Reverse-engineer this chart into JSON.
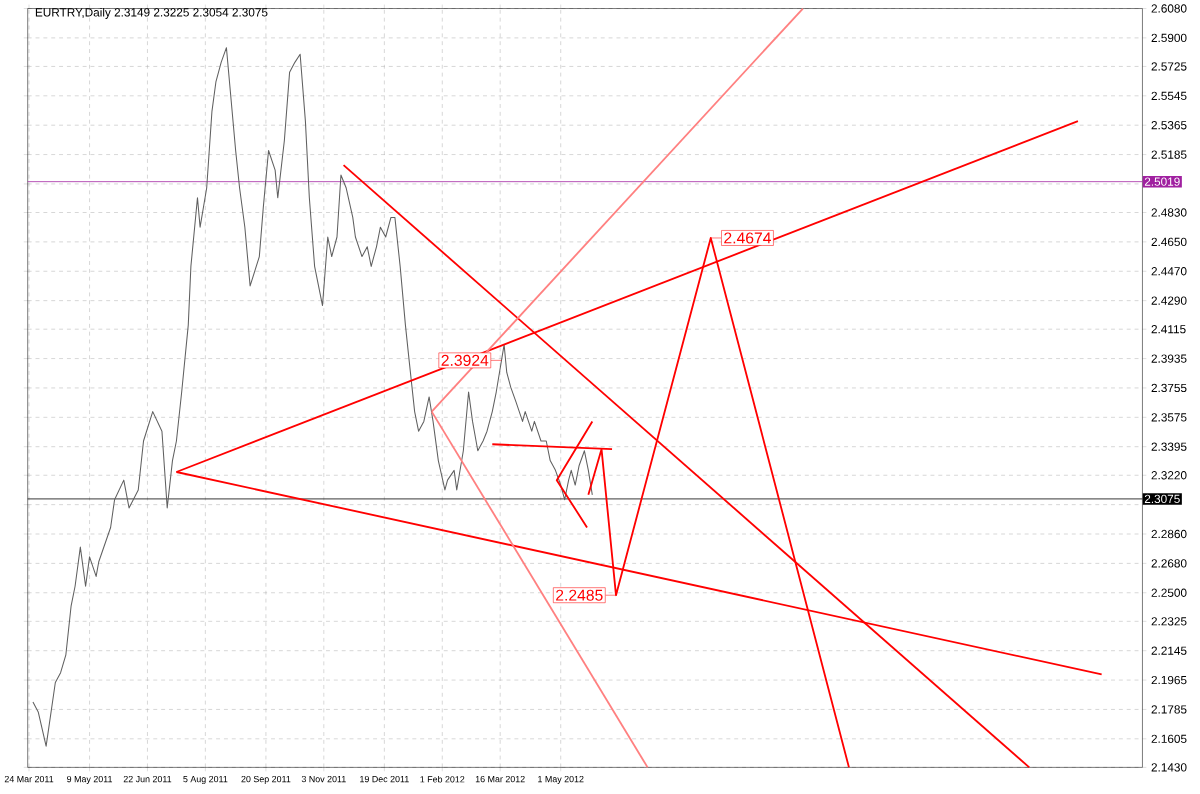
{
  "chart_data": {
    "type": "line",
    "title": "EURTRY,Daily  2.3149 2.3225 2.3054 2.3075",
    "xlim": [
      "2011-03-23",
      "2013-07-17"
    ],
    "ylim": [
      2.143,
      2.608
    ],
    "xticks": [
      {
        "value": "2011-03-24",
        "label": "24 Mar 2011"
      },
      {
        "value": "2011-05-09",
        "label": "9 May 2011"
      },
      {
        "value": "2011-06-22",
        "label": "22 Jun 2011"
      },
      {
        "value": "2011-08-05",
        "label": "5 Aug 2011"
      },
      {
        "value": "2011-09-20",
        "label": "20 Sep 2011"
      },
      {
        "value": "2011-11-03",
        "label": "3 Nov 2011"
      },
      {
        "value": "2011-12-19",
        "label": "19 Dec 2011"
      },
      {
        "value": "2012-02-01",
        "label": "1 Feb 2012"
      },
      {
        "value": "2012-03-16",
        "label": "16 Mar 2012"
      },
      {
        "value": "2012-05-01",
        "label": "1 May 2012"
      }
    ],
    "yticks": [
      {
        "value": 2.143,
        "label": "2.1430"
      },
      {
        "value": 2.1605,
        "label": "2.1605"
      },
      {
        "value": 2.1785,
        "label": "2.1785"
      },
      {
        "value": 2.1965,
        "label": "2.1965"
      },
      {
        "value": 2.2145,
        "label": "2.2145"
      },
      {
        "value": 2.2325,
        "label": "2.2325"
      },
      {
        "value": 2.25,
        "label": "2.2500"
      },
      {
        "value": 2.268,
        "label": "2.2680"
      },
      {
        "value": 2.286,
        "label": "2.2860"
      },
      {
        "value": 2.304,
        "label": null
      },
      {
        "value": 2.322,
        "label": "2.3220"
      },
      {
        "value": 2.3395,
        "label": "2.3395"
      },
      {
        "value": 2.3575,
        "label": "2.3575"
      },
      {
        "value": 2.3755,
        "label": "2.3755"
      },
      {
        "value": 2.3935,
        "label": "2.3935"
      },
      {
        "value": 2.4115,
        "label": "2.4115"
      },
      {
        "value": 2.429,
        "label": "2.4290"
      },
      {
        "value": 2.447,
        "label": "2.4470"
      },
      {
        "value": 2.465,
        "label": "2.4650"
      },
      {
        "value": 2.483,
        "label": "2.4830"
      },
      {
        "value": 2.5005,
        "label": null
      },
      {
        "value": 2.5185,
        "label": "2.5185"
      },
      {
        "value": 2.5365,
        "label": "2.5365"
      },
      {
        "value": 2.5545,
        "label": "2.5545"
      },
      {
        "value": 2.5725,
        "label": "2.5725"
      },
      {
        "value": 2.59,
        "label": "2.5900"
      },
      {
        "value": 2.608,
        "label": "2.6080"
      }
    ],
    "grid": true,
    "series": [
      {
        "color": "#606060",
        "x": [
          "2011-03-27",
          "2011-03-31",
          "2011-04-06",
          "2011-04-13",
          "2011-04-17",
          "2011-04-21",
          "2011-04-25",
          "2011-04-28",
          "2011-05-02",
          "2011-05-06",
          "2011-05-09",
          "2011-05-14",
          "2011-05-16",
          "2011-05-25",
          "2011-05-28",
          "2011-06-04",
          "2011-06-08",
          "2011-06-15",
          "2011-06-19",
          "2011-06-26",
          "2011-07-03",
          "2011-07-07",
          "2011-07-11",
          "2011-07-14",
          "2011-07-18",
          "2011-07-23",
          "2011-07-25",
          "2011-07-30",
          "2011-08-01",
          "2011-08-06",
          "2011-08-10",
          "2011-08-13",
          "2011-08-17",
          "2011-08-21",
          "2011-08-24",
          "2011-08-28",
          "2011-08-31",
          "2011-09-04",
          "2011-09-08",
          "2011-09-15",
          "2011-09-18",
          "2011-09-22",
          "2011-09-27",
          "2011-09-29",
          "2011-10-04",
          "2011-10-08",
          "2011-10-12",
          "2011-10-16",
          "2011-10-20",
          "2011-10-23",
          "2011-10-27",
          "2011-11-02",
          "2011-11-06",
          "2011-11-09",
          "2011-11-13",
          "2011-11-16",
          "2011-11-20",
          "2011-11-25",
          "2011-11-27",
          "2011-12-02",
          "2011-12-06",
          "2011-12-09",
          "2011-12-13",
          "2011-12-16",
          "2011-12-20",
          "2011-12-24",
          "2011-12-27",
          "2011-12-31",
          "2012-01-04",
          "2012-01-07",
          "2012-01-11",
          "2012-01-14",
          "2012-01-18",
          "2012-01-22",
          "2012-01-25",
          "2012-01-29",
          "2012-02-03",
          "2012-02-05",
          "2012-02-10",
          "2012-02-12",
          "2012-02-17",
          "2012-02-21",
          "2012-02-24",
          "2012-02-28",
          "2012-03-03",
          "2012-03-06",
          "2012-03-10",
          "2012-03-13",
          "2012-03-19",
          "2012-03-21",
          "2012-03-24",
          "2012-03-28",
          "2012-04-02",
          "2012-04-04",
          "2012-04-09",
          "2012-04-11",
          "2012-04-16",
          "2012-04-20",
          "2012-04-23",
          "2012-04-27",
          "2012-05-01",
          "2012-05-04",
          "2012-05-07",
          "2012-05-09",
          "2012-05-12",
          "2012-05-15",
          "2012-05-19",
          "2012-05-22",
          "2012-05-25"
        ],
        "values": [
          2.183,
          2.177,
          2.156,
          2.195,
          2.201,
          2.212,
          2.242,
          2.254,
          2.278,
          2.254,
          2.272,
          2.26,
          2.269,
          2.29,
          2.307,
          2.319,
          2.302,
          2.313,
          2.343,
          2.361,
          2.349,
          2.302,
          2.331,
          2.343,
          2.373,
          2.414,
          2.45,
          2.492,
          2.474,
          2.498,
          2.545,
          2.563,
          2.575,
          2.584,
          2.557,
          2.521,
          2.498,
          2.474,
          2.438,
          2.456,
          2.486,
          2.521,
          2.509,
          2.492,
          2.527,
          2.569,
          2.575,
          2.58,
          2.539,
          2.492,
          2.45,
          2.426,
          2.468,
          2.456,
          2.468,
          2.506,
          2.498,
          2.48,
          2.468,
          2.456,
          2.462,
          2.45,
          2.462,
          2.474,
          2.468,
          2.48,
          2.48,
          2.45,
          2.414,
          2.391,
          2.361,
          2.349,
          2.355,
          2.37,
          2.355,
          2.331,
          2.313,
          2.319,
          2.325,
          2.313,
          2.337,
          2.373,
          2.355,
          2.337,
          2.343,
          2.349,
          2.361,
          2.373,
          2.402,
          2.385,
          2.376,
          2.367,
          2.355,
          2.361,
          2.349,
          2.355,
          2.343,
          2.343,
          2.331,
          2.325,
          2.316,
          2.307,
          2.319,
          2.325,
          2.316,
          2.328,
          2.337,
          2.325,
          2.31
        ]
      },
      {
        "color": "#ff0000",
        "x": [
          "2011-07-14",
          "2013-05-29"
        ],
        "values": [
          2.324,
          2.539
        ]
      },
      {
        "color": "#ff0000",
        "x": [
          "2011-07-14",
          "2013-06-16"
        ],
        "values": [
          2.324,
          2.2
        ]
      },
      {
        "color": "#ff0000",
        "x": [
          "2011-11-18",
          "2013-04-22"
        ],
        "values": [
          2.512,
          2.143
        ]
      },
      {
        "color": "#ff8080",
        "x": [
          "2012-01-24",
          "2012-11-01"
        ],
        "values": [
          2.361,
          2.608
        ]
      },
      {
        "color": "#ff8080",
        "x": [
          "2012-01-24",
          "2012-07-06"
        ],
        "values": [
          2.361,
          2.143
        ]
      },
      {
        "color": "#ff0000",
        "x": [
          "2012-03-10",
          "2012-06-09"
        ],
        "values": [
          2.341,
          2.338
        ]
      },
      {
        "color": "#ff0000",
        "x": [
          "2012-05-25",
          "2012-04-28",
          "2012-05-21"
        ],
        "values": [
          2.355,
          2.319,
          2.29
        ]
      },
      {
        "color": "#ff0000",
        "x": [
          "2012-05-22",
          "2012-06-01",
          "2012-06-12",
          "2012-08-23",
          "2012-12-06"
        ],
        "values": [
          2.31,
          2.338,
          2.2485,
          2.4674,
          2.143
        ]
      }
    ],
    "ref_lines": [
      {
        "axis": "y",
        "value": 2.5019,
        "label": "2.5019",
        "color": "#a020a0"
      },
      {
        "axis": "y",
        "value": 2.3075,
        "label": "2.3075",
        "color": "#000000"
      }
    ],
    "annotations": [
      {
        "text": "2.3924",
        "x": "2012-03-17",
        "y": 2.3924
      },
      {
        "text": "2.4674",
        "x": "2012-08-23",
        "y": 2.4674
      },
      {
        "text": "2.2485",
        "x": "2012-06-12",
        "y": 2.2485
      }
    ]
  }
}
